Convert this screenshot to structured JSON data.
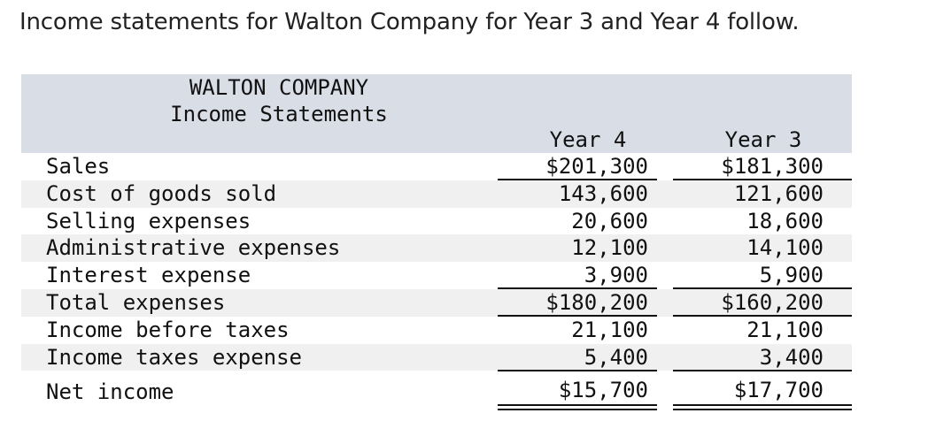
{
  "intro": "Income statements for Walton Company for Year 3 and Year 4 follow.",
  "statement": {
    "company": "WALTON COMPANY",
    "title": "Income Statements",
    "columns": [
      "Year 4",
      "Year 3"
    ],
    "rows": [
      {
        "label": "Sales",
        "year4": "$201,300",
        "year3": "$181,300"
      },
      {
        "label": "Cost of goods sold",
        "year4": "143,600",
        "year3": "121,600"
      },
      {
        "label": "Selling expenses",
        "year4": "20,600",
        "year3": "18,600"
      },
      {
        "label": "Administrative expenses",
        "year4": "12,100",
        "year3": "14,100"
      },
      {
        "label": "Interest expense",
        "year4": "3,900",
        "year3": "5,900"
      },
      {
        "label": "Total expenses",
        "year4": "$180,200",
        "year3": "$160,200"
      },
      {
        "label": "Income before taxes",
        "year4": "21,100",
        "year3": "21,100"
      },
      {
        "label": "Income taxes expense",
        "year4": "5,400",
        "year3": "3,400"
      }
    ],
    "net": {
      "label": "Net income",
      "year4": "$15,700",
      "year3": "$17,700"
    }
  }
}
